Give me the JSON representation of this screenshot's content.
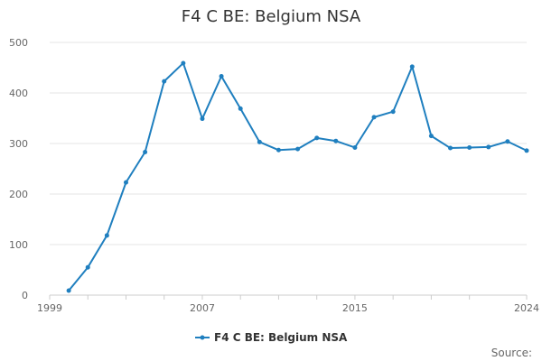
{
  "chart_data": {
    "type": "line",
    "title": "F4 C BE: Belgium NSA",
    "xlabel": "",
    "ylabel": "",
    "xlim": [
      1999,
      2024
    ],
    "ylim": [
      0,
      500
    ],
    "x_ticks": [
      "1999",
      "2007",
      "2015",
      "2024"
    ],
    "y_ticks": [
      "0",
      "100",
      "200",
      "300",
      "400",
      "500"
    ],
    "grid": true,
    "legend_position": "bottom",
    "series": [
      {
        "name": "F4 C BE: Belgium NSA",
        "color": "#1f7fbf",
        "x": [
          2000,
          2001,
          2002,
          2003,
          2004,
          2005,
          2006,
          2007,
          2008,
          2009,
          2010,
          2011,
          2012,
          2013,
          2014,
          2015,
          2016,
          2017,
          2018,
          2019,
          2020,
          2021,
          2022,
          2023,
          2024
        ],
        "values": [
          9,
          55,
          118,
          223,
          283,
          423,
          459,
          349,
          433,
          369,
          303,
          287,
          289,
          311,
          305,
          292,
          352,
          363,
          452,
          315,
          291,
          292,
          293,
          304,
          286
        ]
      }
    ]
  },
  "source_label": "Source:"
}
